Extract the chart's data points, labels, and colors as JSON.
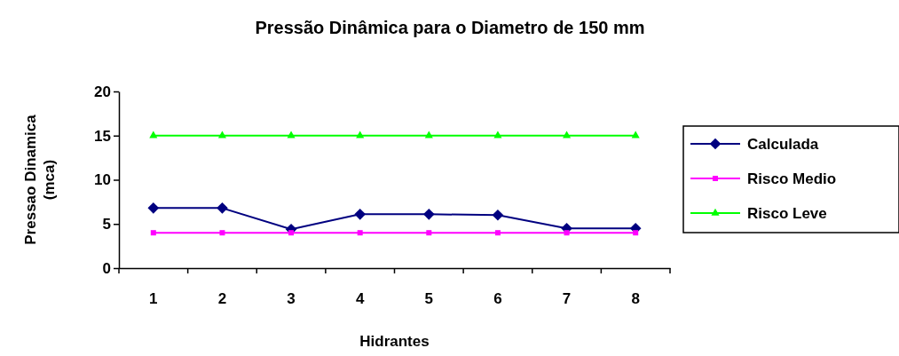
{
  "chart_data": {
    "type": "line",
    "title": "Pressão Dinâmica para o Diametro de 150 mm",
    "xlabel": "Hidrantes",
    "ylabel": "Pressao Dinamica (mca)",
    "categories": [
      "1",
      "2",
      "3",
      "4",
      "5",
      "6",
      "7",
      "8"
    ],
    "ylim": [
      0,
      20
    ],
    "yticks": [
      0,
      5,
      10,
      15,
      20
    ],
    "grid": false,
    "legend": "right",
    "series": [
      {
        "name": "Calculada",
        "color": "#000080",
        "marker": "diamond",
        "values": [
          6.8,
          6.8,
          4.4,
          6.1,
          6.1,
          6.0,
          4.5,
          4.5
        ]
      },
      {
        "name": "Risco Medio",
        "color": "#ff00ff",
        "marker": "square",
        "values": [
          4,
          4,
          4,
          4,
          4,
          4,
          4,
          4
        ]
      },
      {
        "name": "Risco Leve",
        "color": "#00ff00",
        "marker": "triangle",
        "values": [
          15,
          15,
          15,
          15,
          15,
          15,
          15,
          15
        ]
      }
    ]
  }
}
